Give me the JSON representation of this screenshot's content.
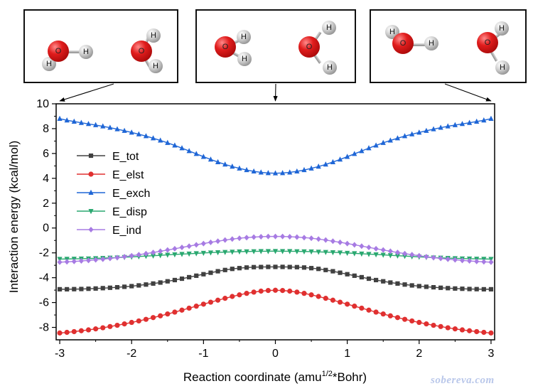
{
  "chart_data": {
    "type": "line",
    "xlabel": "Reaction coordinate",
    "xlabel_unit_prefix": "amu",
    "xlabel_unit_sup": "1/2",
    "xlabel_unit_suffix": "*Bohr",
    "ylabel": "Interaction energy (kcal/mol)",
    "xlim": [
      -3.05,
      3.05
    ],
    "ylim": [
      -9,
      10
    ],
    "x_ticks": [
      -3,
      -2,
      -1,
      0,
      1,
      2,
      3
    ],
    "x_tick_labels": [
      "-3",
      "-2",
      "-1",
      "0",
      "1",
      "2",
      "3"
    ],
    "y_ticks": [
      -8,
      -6,
      -4,
      -2,
      0,
      2,
      4,
      6,
      8,
      10
    ],
    "y_tick_labels": [
      "-8",
      "-6",
      "-4",
      "-2",
      "0",
      "2",
      "4",
      "6",
      "8",
      "10"
    ],
    "grid": false,
    "legend_position": "center-left",
    "x_start": -3,
    "x_step": 0.1,
    "series": [
      {
        "name": "E_tot",
        "color": "#404040",
        "marker": "square",
        "values": [
          -4.93,
          -4.93,
          -4.92,
          -4.91,
          -4.89,
          -4.87,
          -4.84,
          -4.81,
          -4.77,
          -4.73,
          -4.68,
          -4.62,
          -4.55,
          -4.47,
          -4.39,
          -4.29,
          -4.19,
          -4.08,
          -3.96,
          -3.84,
          -3.72,
          -3.6,
          -3.48,
          -3.38,
          -3.29,
          -3.23,
          -3.18,
          -3.15,
          -3.14,
          -3.13,
          -3.13,
          -3.13,
          -3.14,
          -3.15,
          -3.18,
          -3.23,
          -3.29,
          -3.38,
          -3.48,
          -3.6,
          -3.72,
          -3.84,
          -3.96,
          -4.08,
          -4.19,
          -4.29,
          -4.39,
          -4.47,
          -4.55,
          -4.62,
          -4.68,
          -4.73,
          -4.77,
          -4.81,
          -4.84,
          -4.87,
          -4.89,
          -4.91,
          -4.92,
          -4.93,
          -4.93
        ]
      },
      {
        "name": "E_elst",
        "color": "#e03030",
        "marker": "circle",
        "values": [
          -8.45,
          -8.4,
          -8.34,
          -8.27,
          -8.2,
          -8.12,
          -8.03,
          -7.93,
          -7.83,
          -7.72,
          -7.6,
          -7.48,
          -7.35,
          -7.21,
          -7.07,
          -6.92,
          -6.77,
          -6.61,
          -6.45,
          -6.29,
          -6.13,
          -5.97,
          -5.81,
          -5.66,
          -5.51,
          -5.38,
          -5.26,
          -5.16,
          -5.08,
          -5.03,
          -5.01,
          -5.03,
          -5.08,
          -5.16,
          -5.26,
          -5.38,
          -5.51,
          -5.66,
          -5.81,
          -5.97,
          -6.13,
          -6.29,
          -6.45,
          -6.61,
          -6.77,
          -6.92,
          -7.07,
          -7.21,
          -7.35,
          -7.48,
          -7.6,
          -7.72,
          -7.83,
          -7.93,
          -8.03,
          -8.12,
          -8.2,
          -8.27,
          -8.34,
          -8.4,
          -8.45
        ]
      },
      {
        "name": "E_exch",
        "color": "#1f66d6",
        "marker": "triangle-up",
        "values": [
          8.8,
          8.67,
          8.57,
          8.47,
          8.38,
          8.29,
          8.19,
          8.08,
          7.96,
          7.83,
          7.69,
          7.55,
          7.4,
          7.23,
          7.05,
          6.86,
          6.65,
          6.43,
          6.2,
          5.97,
          5.74,
          5.52,
          5.31,
          5.12,
          4.95,
          4.8,
          4.67,
          4.56,
          4.48,
          4.43,
          4.41,
          4.43,
          4.48,
          4.56,
          4.67,
          4.8,
          4.95,
          5.12,
          5.31,
          5.52,
          5.74,
          5.97,
          6.2,
          6.43,
          6.65,
          6.86,
          7.05,
          7.23,
          7.4,
          7.55,
          7.69,
          7.83,
          7.96,
          8.08,
          8.19,
          8.29,
          8.38,
          8.47,
          8.57,
          8.67,
          8.8
        ]
      },
      {
        "name": "E_disp",
        "color": "#2aa870",
        "marker": "triangle-down",
        "values": [
          -2.5,
          -2.49,
          -2.48,
          -2.47,
          -2.46,
          -2.44,
          -2.42,
          -2.4,
          -2.38,
          -2.35,
          -2.32,
          -2.29,
          -2.26,
          -2.23,
          -2.2,
          -2.16,
          -2.13,
          -2.1,
          -2.07,
          -2.04,
          -2.01,
          -1.98,
          -1.96,
          -1.94,
          -1.92,
          -1.9,
          -1.89,
          -1.88,
          -1.87,
          -1.87,
          -1.86,
          -1.87,
          -1.87,
          -1.88,
          -1.89,
          -1.9,
          -1.92,
          -1.94,
          -1.96,
          -1.98,
          -2.01,
          -2.04,
          -2.07,
          -2.1,
          -2.13,
          -2.16,
          -2.2,
          -2.23,
          -2.26,
          -2.29,
          -2.32,
          -2.35,
          -2.38,
          -2.4,
          -2.42,
          -2.44,
          -2.46,
          -2.47,
          -2.48,
          -2.49,
          -2.5
        ]
      },
      {
        "name": "E_ind",
        "color": "#a77be3",
        "marker": "diamond",
        "values": [
          -2.75,
          -2.72,
          -2.69,
          -2.65,
          -2.61,
          -2.56,
          -2.51,
          -2.45,
          -2.38,
          -2.31,
          -2.23,
          -2.15,
          -2.06,
          -1.97,
          -1.87,
          -1.77,
          -1.67,
          -1.56,
          -1.46,
          -1.35,
          -1.25,
          -1.15,
          -1.06,
          -0.97,
          -0.89,
          -0.82,
          -0.77,
          -0.73,
          -0.7,
          -0.68,
          -0.68,
          -0.68,
          -0.7,
          -0.73,
          -0.77,
          -0.82,
          -0.89,
          -0.97,
          -1.06,
          -1.15,
          -1.25,
          -1.35,
          -1.46,
          -1.56,
          -1.67,
          -1.77,
          -1.87,
          -1.97,
          -2.06,
          -2.15,
          -2.23,
          -2.31,
          -2.38,
          -2.45,
          -2.51,
          -2.56,
          -2.61,
          -2.65,
          -2.69,
          -2.72,
          -2.75
        ]
      }
    ]
  },
  "molecules": {
    "oxygen_label": "O",
    "hydrogen_label": "H"
  },
  "watermark": "sobereva.com"
}
